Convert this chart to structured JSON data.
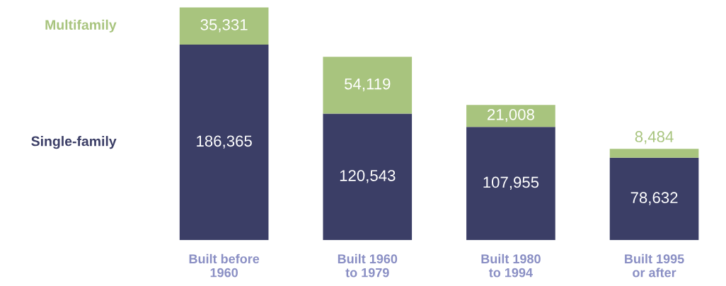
{
  "chart_data": {
    "type": "bar",
    "stacked": true,
    "categories": [
      "Built before\n1960",
      "Built 1960\nto 1979",
      "Built 1980\nto 1994",
      "Built 1995\nor after"
    ],
    "series": [
      {
        "name": "Single-family",
        "color": "#3b3e66",
        "values": [
          186365,
          120543,
          107955,
          78632
        ],
        "value_labels": [
          "186,365",
          "120,543",
          "107,955",
          "78,632"
        ]
      },
      {
        "name": "Multifamily",
        "color": "#a8c47e",
        "values": [
          35331,
          54119,
          21008,
          8484
        ],
        "value_labels": [
          "35,331",
          "54,119",
          "21,008",
          "8,484"
        ]
      }
    ],
    "legend": "left",
    "grid": false
  }
}
